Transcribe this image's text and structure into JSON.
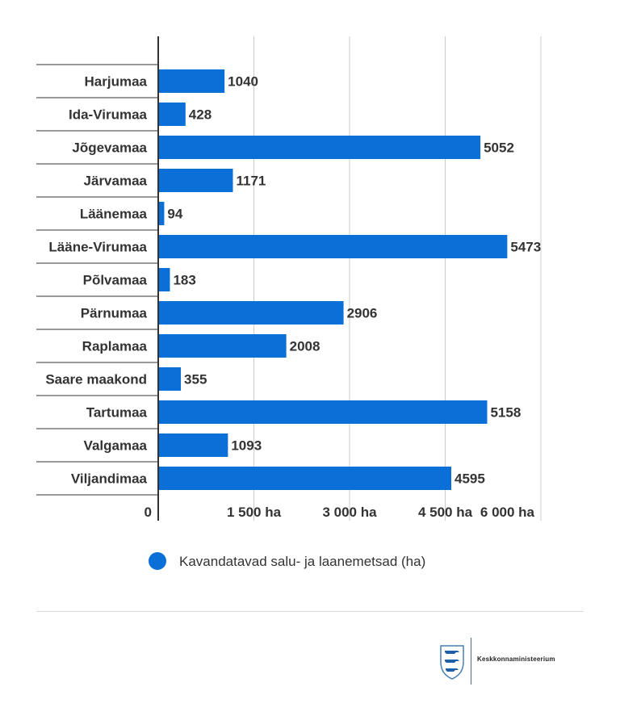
{
  "chart_data": {
    "type": "bar",
    "orientation": "horizontal",
    "categories": [
      "Harjumaa",
      "Ida-Virumaa",
      "Jõgevamaa",
      "Järvamaa",
      "Läänemaa",
      "Lääne-Virumaa",
      "Põlvamaa",
      "Pärnumaa",
      "Raplamaa",
      "Saare maakond",
      "Tartumaa",
      "Valgamaa",
      "Viljandimaa"
    ],
    "series": [
      {
        "name": "Kavandatavad salu- ja laanemetsad (ha)",
        "values": [
          1040,
          428,
          5052,
          1171,
          94,
          5473,
          183,
          2906,
          2008,
          355,
          5158,
          1093,
          4595
        ],
        "value_labels": [
          "1040",
          "428",
          "5052",
          "1171",
          "94",
          "5473",
          "183",
          "2906",
          "2008",
          "355",
          "5158",
          "1093",
          "4595"
        ],
        "color": "#0a6fd6"
      }
    ],
    "xlim": [
      0,
      6000
    ],
    "x_ticks": [
      0,
      1500,
      3000,
      4500,
      6000
    ],
    "x_tick_labels": [
      "0",
      "1 500 ha",
      "3 000 ha",
      "4 500 ha",
      "6 000 ha"
    ],
    "grid": true,
    "legend": "bottom-center"
  },
  "footer": {
    "logo_text": "Keskkonnaministeerium",
    "logo_icon": "estonian-coat-of-arms-icon"
  }
}
